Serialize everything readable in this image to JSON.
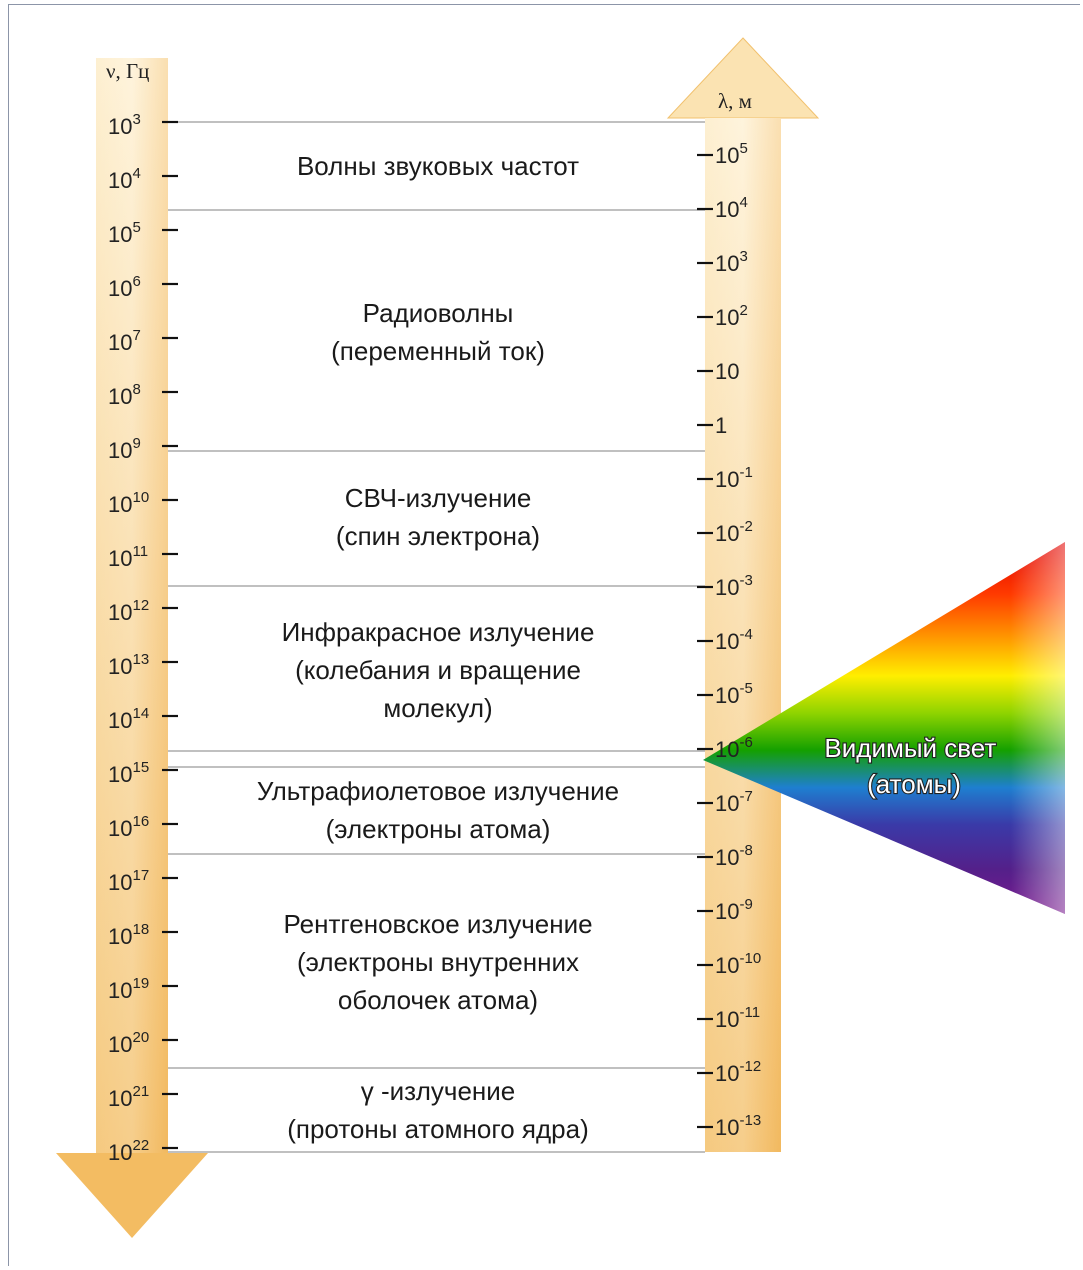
{
  "left_axis": {
    "title": "ν, Гц",
    "ticks": [
      {
        "base": "10",
        "exp": "3"
      },
      {
        "base": "10",
        "exp": "4"
      },
      {
        "base": "10",
        "exp": "5"
      },
      {
        "base": "10",
        "exp": "6"
      },
      {
        "base": "10",
        "exp": "7"
      },
      {
        "base": "10",
        "exp": "8"
      },
      {
        "base": "10",
        "exp": "9"
      },
      {
        "base": "10",
        "exp": "10"
      },
      {
        "base": "10",
        "exp": "11"
      },
      {
        "base": "10",
        "exp": "12"
      },
      {
        "base": "10",
        "exp": "13"
      },
      {
        "base": "10",
        "exp": "14"
      },
      {
        "base": "10",
        "exp": "15"
      },
      {
        "base": "10",
        "exp": "16"
      },
      {
        "base": "10",
        "exp": "17"
      },
      {
        "base": "10",
        "exp": "18"
      },
      {
        "base": "10",
        "exp": "19"
      },
      {
        "base": "10",
        "exp": "20"
      },
      {
        "base": "10",
        "exp": "21"
      },
      {
        "base": "10",
        "exp": "22"
      }
    ]
  },
  "right_axis": {
    "title": "λ, м",
    "ticks": [
      {
        "base": "10",
        "exp": "5"
      },
      {
        "base": "10",
        "exp": "4"
      },
      {
        "base": "10",
        "exp": "3"
      },
      {
        "base": "10",
        "exp": "2"
      },
      {
        "base": "10",
        "exp": ""
      },
      {
        "base": "1",
        "exp": ""
      },
      {
        "base": "10",
        "exp": "-1"
      },
      {
        "base": "10",
        "exp": "-2"
      },
      {
        "base": "10",
        "exp": "-3"
      },
      {
        "base": "10",
        "exp": "-4"
      },
      {
        "base": "10",
        "exp": "-5"
      },
      {
        "base": "10",
        "exp": "-6"
      },
      {
        "base": "10",
        "exp": "-7"
      },
      {
        "base": "10",
        "exp": "-8"
      },
      {
        "base": "10",
        "exp": "-9"
      },
      {
        "base": "10",
        "exp": "-10"
      },
      {
        "base": "10",
        "exp": "-11"
      },
      {
        "base": "10",
        "exp": "-12"
      },
      {
        "base": "10",
        "exp": "-13"
      }
    ]
  },
  "bands": [
    {
      "lines": [
        "Волны звуковых частот"
      ]
    },
    {
      "lines": [
        "Радиоволны",
        "(переменный ток)"
      ]
    },
    {
      "lines": [
        "СВЧ-излучение",
        "(спин электрона)"
      ]
    },
    {
      "lines": [
        "Инфракрасное излучение",
        "(колебания и вращение",
        "молекул)"
      ]
    },
    {
      "lines": [
        "Ультрафиолетовое излучение",
        "(электроны атома)"
      ]
    },
    {
      "lines": [
        "Рентгеновское излучение",
        "(электроны внутренних",
        "оболочек атома)"
      ]
    },
    {
      "lines": [
        "γ -излучение",
        "(протоны атомного ядра)"
      ]
    }
  ],
  "visible_light": {
    "lines": [
      "Видимый свет",
      "(атомы)"
    ]
  },
  "colors": {
    "axis_gradient_light": "#fdf0d2",
    "axis_gradient_dark": "#f2b75a",
    "divider": "#9a9a9a",
    "tick": "#111111"
  }
}
